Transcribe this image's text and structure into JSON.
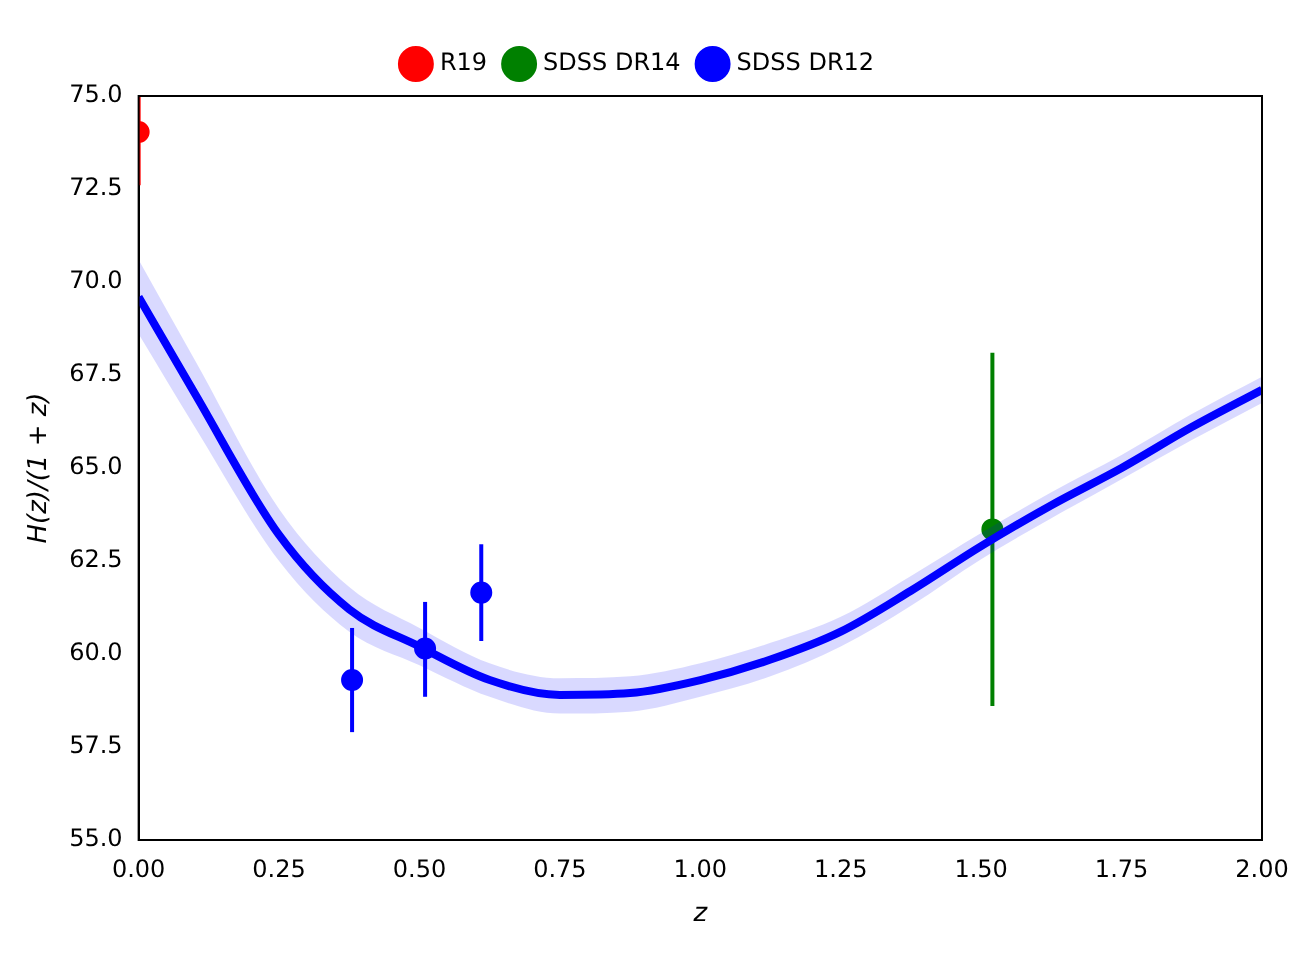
{
  "chart_data": {
    "type": "scatter",
    "xlabel": "z",
    "ylabel": "H(z)/(1 + z)",
    "legend": "top",
    "grid": false,
    "xlim": [
      0,
      2
    ],
    "ylim": [
      55,
      75
    ],
    "xticks": [
      {
        "value": 0,
        "label": "0.00"
      },
      {
        "value": 0.25,
        "label": "0.25"
      },
      {
        "value": 0.5,
        "label": "0.50"
      },
      {
        "value": 0.75,
        "label": "0.75"
      },
      {
        "value": 1,
        "label": "1.00"
      },
      {
        "value": 1.25,
        "label": "1.25"
      },
      {
        "value": 1.5,
        "label": "1.50"
      },
      {
        "value": 1.75,
        "label": "1.75"
      },
      {
        "value": 2,
        "label": "2.00"
      }
    ],
    "yticks": [
      {
        "value": 55,
        "label": "55.0"
      },
      {
        "value": 57.5,
        "label": "57.5"
      },
      {
        "value": 60,
        "label": "60.0"
      },
      {
        "value": 62.5,
        "label": "62.5"
      },
      {
        "value": 65,
        "label": "65.0"
      },
      {
        "value": 67.5,
        "label": "67.5"
      },
      {
        "value": 70,
        "label": "70.0"
      },
      {
        "value": 72.5,
        "label": "72.5"
      },
      {
        "value": 75,
        "label": "75.0"
      }
    ],
    "series": [
      {
        "type": "line",
        "color": "#0000ff",
        "line_style": "solid",
        "marker": "none",
        "x": [
          0,
          0.1,
          0.25,
          0.375,
          0.5,
          0.625,
          0.75,
          0.875,
          1,
          1.125,
          1.25,
          1.375,
          1.5,
          1.625,
          1.75,
          1.875,
          2
        ],
        "values": [
          69.6,
          67.0,
          63.2,
          61.2,
          60.2,
          59.3,
          58.9,
          58.95,
          59.3,
          59.85,
          60.6,
          61.7,
          62.9,
          64.0,
          65.0,
          66.1,
          67.1
        ],
        "lower": [
          68.6,
          66.1,
          62.5,
          60.6,
          59.7,
          58.85,
          58.4,
          58.45,
          58.85,
          59.4,
          60.2,
          61.3,
          62.55,
          63.65,
          64.7,
          65.75,
          66.75
        ],
        "upper": [
          70.6,
          67.9,
          63.9,
          61.8,
          60.7,
          59.75,
          59.35,
          59.4,
          59.75,
          60.3,
          61.0,
          62.1,
          63.25,
          64.35,
          65.35,
          66.45,
          67.45
        ]
      },
      {
        "name": "R19",
        "color": "#ff0000",
        "marker": "circle",
        "x": [
          0
        ],
        "values": [
          74.03
        ],
        "errors": [
          [
            72.6,
            75
          ]
        ]
      },
      {
        "name": "SDSS DR14",
        "color": "#008000",
        "marker": "circle",
        "x": [
          1.52
        ],
        "values": [
          63.35
        ],
        "errors": [
          [
            58.6,
            68.1
          ]
        ]
      },
      {
        "name": "SDSS DR12",
        "color": "#0000ff",
        "marker": "circle",
        "x": [
          0.38,
          0.51,
          0.61
        ],
        "values": [
          59.3,
          60.15,
          61.65
        ],
        "errors": [
          [
            57.9,
            60.7
          ],
          [
            58.85,
            61.4
          ],
          [
            60.35,
            62.95
          ]
        ]
      }
    ]
  }
}
